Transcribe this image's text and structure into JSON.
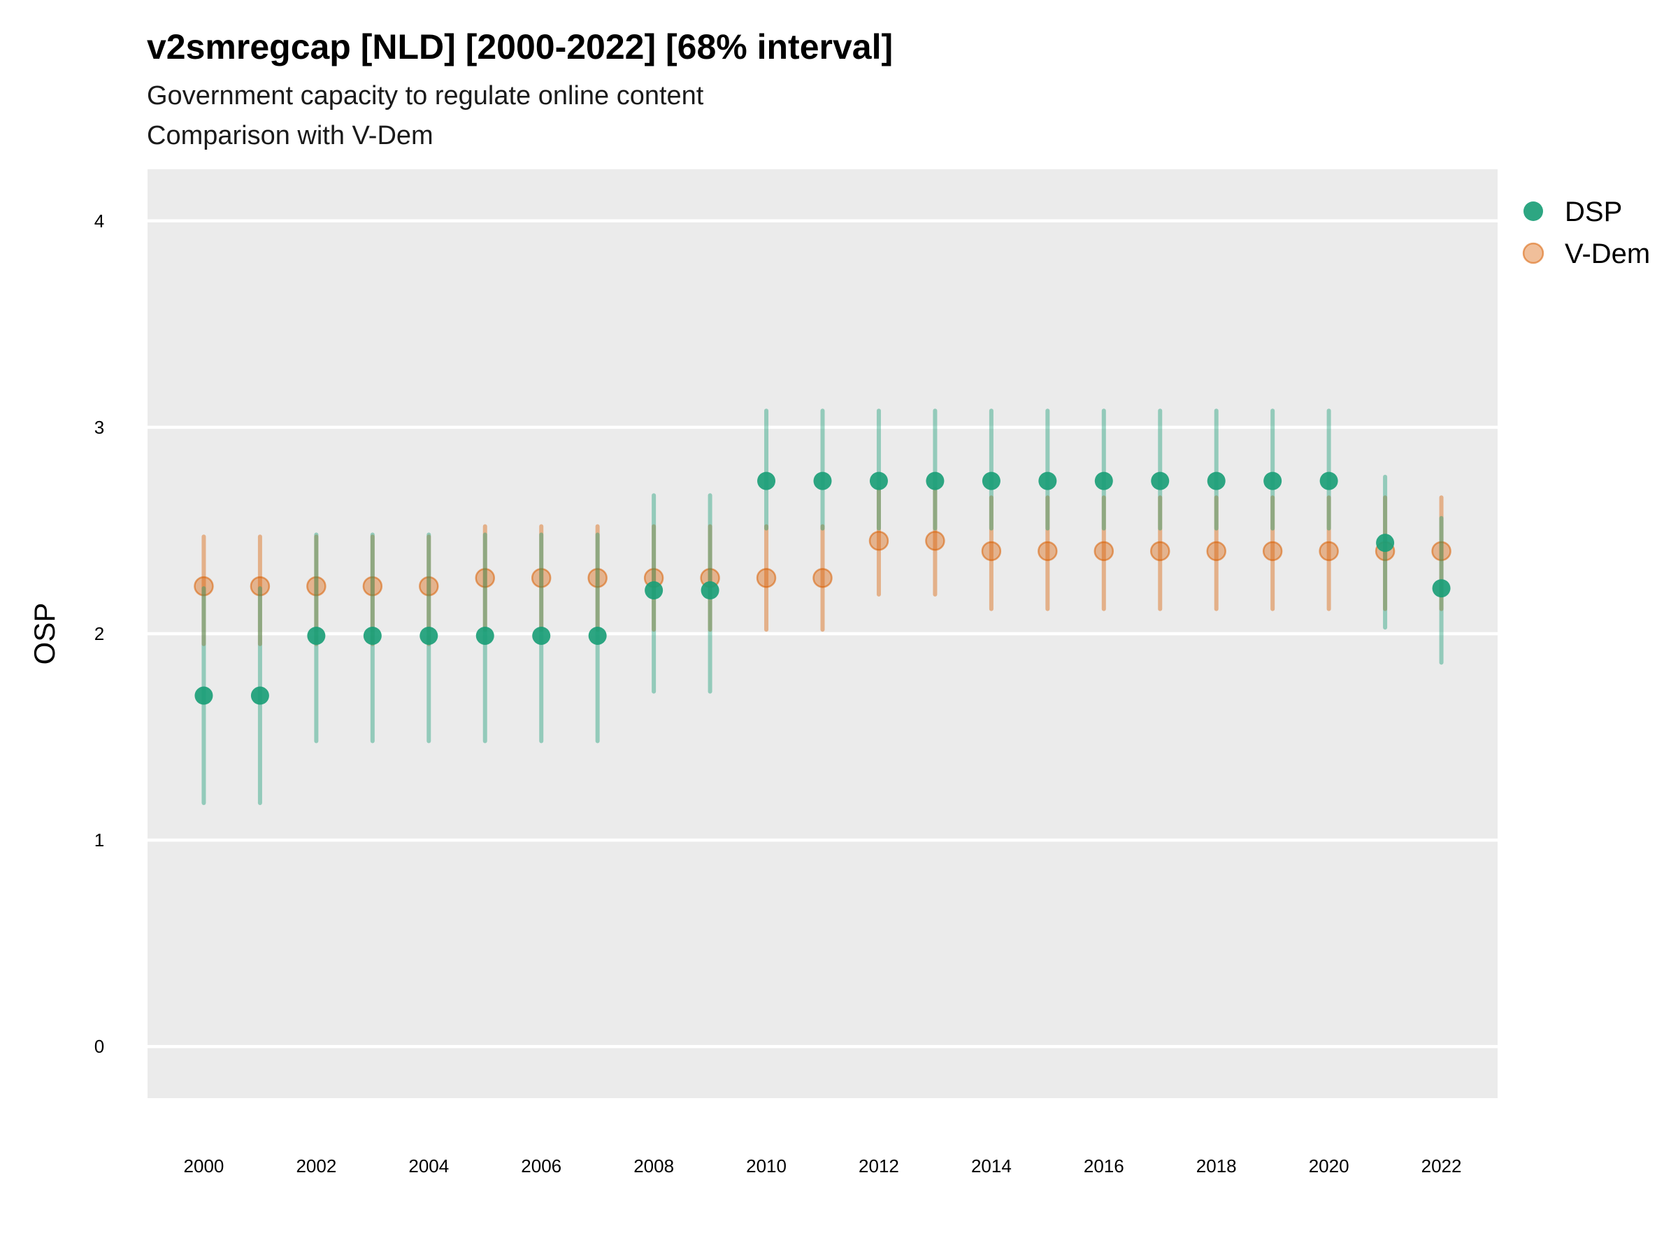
{
  "chart_data": {
    "type": "scatter",
    "title": "v2smregcap [NLD] [2000-2022] [68% interval]",
    "subtitle_lines": [
      "Government capacity to regulate online content",
      "Comparison with V-Dem"
    ],
    "ylabel": "OSP",
    "xlabel": "",
    "ylim": [
      -0.25,
      4.25
    ],
    "xlim": [
      1999,
      2023
    ],
    "y_ticks": [
      0,
      1,
      2,
      3,
      4
    ],
    "x_ticks": [
      2000,
      2002,
      2004,
      2006,
      2008,
      2010,
      2012,
      2014,
      2016,
      2018,
      2020,
      2022
    ],
    "grid": true,
    "legend_position": "right",
    "series": [
      {
        "name": "DSP",
        "color": "#1b9e77",
        "x": [
          2000,
          2001,
          2002,
          2003,
          2004,
          2005,
          2006,
          2007,
          2008,
          2009,
          2010,
          2011,
          2012,
          2013,
          2014,
          2015,
          2016,
          2017,
          2018,
          2019,
          2020,
          2021,
          2022
        ],
        "y": [
          1.7,
          1.7,
          1.99,
          1.99,
          1.99,
          1.99,
          1.99,
          1.99,
          2.21,
          2.21,
          2.74,
          2.74,
          2.74,
          2.74,
          2.74,
          2.74,
          2.74,
          2.74,
          2.74,
          2.74,
          2.74,
          2.44,
          2.22
        ],
        "lower": [
          1.18,
          1.18,
          1.48,
          1.48,
          1.48,
          1.48,
          1.48,
          1.48,
          1.72,
          1.72,
          2.51,
          2.51,
          2.51,
          2.51,
          2.51,
          2.51,
          2.51,
          2.51,
          2.51,
          2.51,
          2.51,
          2.03,
          1.86
        ],
        "upper": [
          2.22,
          2.22,
          2.48,
          2.48,
          2.48,
          2.48,
          2.48,
          2.48,
          2.67,
          2.67,
          3.08,
          3.08,
          3.08,
          3.08,
          3.08,
          3.08,
          3.08,
          3.08,
          3.08,
          3.08,
          3.08,
          2.76,
          2.56
        ]
      },
      {
        "name": "V-Dem",
        "color": "#d95f02",
        "x": [
          2000,
          2001,
          2002,
          2003,
          2004,
          2005,
          2006,
          2007,
          2008,
          2009,
          2010,
          2011,
          2012,
          2013,
          2014,
          2015,
          2016,
          2017,
          2018,
          2019,
          2020,
          2021,
          2022
        ],
        "y": [
          2.23,
          2.23,
          2.23,
          2.23,
          2.23,
          2.27,
          2.27,
          2.27,
          2.27,
          2.27,
          2.27,
          2.27,
          2.45,
          2.45,
          2.4,
          2.4,
          2.4,
          2.4,
          2.4,
          2.4,
          2.4,
          2.4,
          2.4
        ],
        "lower": [
          1.95,
          1.95,
          1.95,
          1.95,
          1.95,
          2.02,
          2.02,
          2.02,
          2.02,
          2.02,
          2.02,
          2.02,
          2.19,
          2.19,
          2.12,
          2.12,
          2.12,
          2.12,
          2.12,
          2.12,
          2.12,
          2.12,
          2.12
        ],
        "upper": [
          2.47,
          2.47,
          2.47,
          2.47,
          2.47,
          2.52,
          2.52,
          2.52,
          2.52,
          2.52,
          2.52,
          2.52,
          2.7,
          2.7,
          2.66,
          2.66,
          2.66,
          2.66,
          2.66,
          2.66,
          2.66,
          2.66,
          2.66
        ]
      }
    ]
  }
}
